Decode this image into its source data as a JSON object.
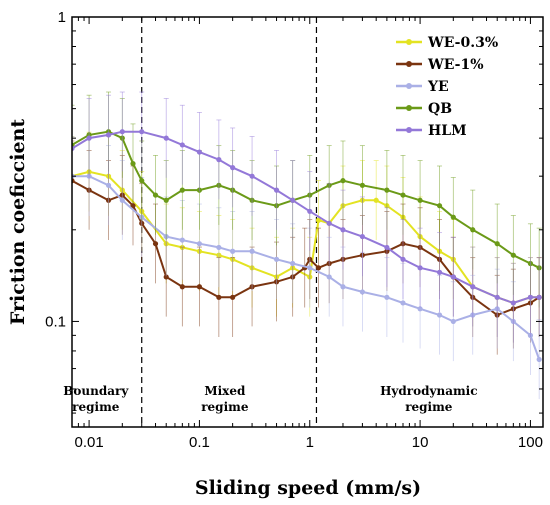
{
  "chart_data": {
    "type": "line",
    "xlabel": "Sliding speed (mm/s)",
    "ylabel": "Friction coeficcient",
    "xscale": "log",
    "yscale": "log",
    "xlim": [
      0.007,
      130
    ],
    "ylim": [
      0.045,
      1
    ],
    "x_ticks": [
      {
        "value": 0.01,
        "label": "0.01"
      },
      {
        "value": 0.1,
        "label": "0.1"
      },
      {
        "value": 1,
        "label": "1"
      },
      {
        "value": 10,
        "label": "10"
      },
      {
        "value": 100,
        "label": "100"
      }
    ],
    "y_ticks": [
      {
        "value": 1,
        "label": "1"
      },
      {
        "value": 0.1,
        "label": "0.1"
      }
    ],
    "legend_position": "top-right",
    "regime_boundaries": [
      0.03,
      1.15
    ],
    "regimes": [
      {
        "line1": "Boundary",
        "line2": "regime",
        "x": 0.0115
      },
      {
        "line1": "Mixed",
        "line2": "regime",
        "x": 0.17
      },
      {
        "line1": "Hydrodynamic",
        "line2": "regime",
        "x": 12
      }
    ],
    "series": [
      {
        "name": "WE-0.3%",
        "color": "#e3e322",
        "marker": "circle",
        "x": [
          0.007,
          0.01,
          0.015,
          0.02,
          0.03,
          0.05,
          0.07,
          0.1,
          0.15,
          0.2,
          0.3,
          0.5,
          0.7,
          1,
          1.2,
          1.5,
          2,
          3,
          4,
          5,
          7,
          10,
          15,
          20,
          30,
          50,
          70,
          100,
          120
        ],
        "y": [
          0.3,
          0.31,
          0.3,
          0.27,
          0.23,
          0.18,
          0.175,
          0.17,
          0.165,
          0.16,
          0.15,
          0.14,
          0.15,
          0.14,
          0.215,
          0.21,
          0.24,
          0.25,
          0.25,
          0.24,
          0.22,
          0.19,
          0.17,
          0.16,
          0.13,
          0.12,
          0.115,
          0.12,
          0.12
        ]
      },
      {
        "name": "WE-1%",
        "color": "#7a3410",
        "marker": "circle",
        "x": [
          0.007,
          0.01,
          0.015,
          0.02,
          0.025,
          0.03,
          0.04,
          0.05,
          0.07,
          0.1,
          0.15,
          0.2,
          0.3,
          0.5,
          0.7,
          0.9,
          1.0,
          1.2,
          1.5,
          2,
          3,
          5,
          7,
          10,
          15,
          20,
          30,
          50,
          70,
          100,
          120
        ],
        "y": [
          0.29,
          0.27,
          0.25,
          0.26,
          0.24,
          0.21,
          0.18,
          0.14,
          0.13,
          0.13,
          0.12,
          0.12,
          0.13,
          0.135,
          0.14,
          0.15,
          0.16,
          0.15,
          0.155,
          0.16,
          0.165,
          0.17,
          0.18,
          0.175,
          0.16,
          0.14,
          0.12,
          0.105,
          0.11,
          0.115,
          0.12
        ]
      },
      {
        "name": "YE",
        "color": "#aab0e6",
        "marker": "circle",
        "x": [
          0.007,
          0.01,
          0.015,
          0.02,
          0.03,
          0.05,
          0.07,
          0.1,
          0.15,
          0.2,
          0.3,
          0.5,
          0.7,
          1,
          1.5,
          2,
          3,
          5,
          7,
          10,
          15,
          20,
          30,
          50,
          70,
          100,
          120
        ],
        "y": [
          0.3,
          0.3,
          0.28,
          0.25,
          0.22,
          0.19,
          0.185,
          0.18,
          0.175,
          0.17,
          0.17,
          0.16,
          0.155,
          0.15,
          0.14,
          0.13,
          0.125,
          0.12,
          0.115,
          0.11,
          0.105,
          0.1,
          0.105,
          0.11,
          0.1,
          0.09,
          0.075
        ]
      },
      {
        "name": "QB",
        "color": "#6b9a18",
        "marker": "circle",
        "x": [
          0.007,
          0.01,
          0.015,
          0.02,
          0.025,
          0.03,
          0.04,
          0.05,
          0.07,
          0.1,
          0.15,
          0.2,
          0.3,
          0.5,
          0.7,
          1,
          1.5,
          2,
          3,
          5,
          7,
          10,
          15,
          20,
          30,
          50,
          70,
          100,
          120
        ],
        "y": [
          0.38,
          0.41,
          0.42,
          0.4,
          0.33,
          0.29,
          0.26,
          0.25,
          0.27,
          0.27,
          0.28,
          0.27,
          0.25,
          0.24,
          0.25,
          0.26,
          0.28,
          0.29,
          0.28,
          0.27,
          0.26,
          0.25,
          0.24,
          0.22,
          0.2,
          0.18,
          0.165,
          0.155,
          0.15
        ]
      },
      {
        "name": "HLM",
        "color": "#9378d8",
        "marker": "circle",
        "x": [
          0.007,
          0.01,
          0.015,
          0.02,
          0.03,
          0.05,
          0.07,
          0.1,
          0.15,
          0.2,
          0.3,
          0.5,
          0.7,
          1,
          1.5,
          2,
          3,
          5,
          7,
          10,
          15,
          20,
          30,
          50,
          70,
          100,
          120
        ],
        "y": [
          0.37,
          0.4,
          0.41,
          0.42,
          0.42,
          0.4,
          0.38,
          0.36,
          0.34,
          0.32,
          0.3,
          0.27,
          0.25,
          0.23,
          0.21,
          0.2,
          0.19,
          0.175,
          0.16,
          0.15,
          0.145,
          0.14,
          0.13,
          0.12,
          0.115,
          0.12,
          0.12
        ]
      }
    ]
  }
}
